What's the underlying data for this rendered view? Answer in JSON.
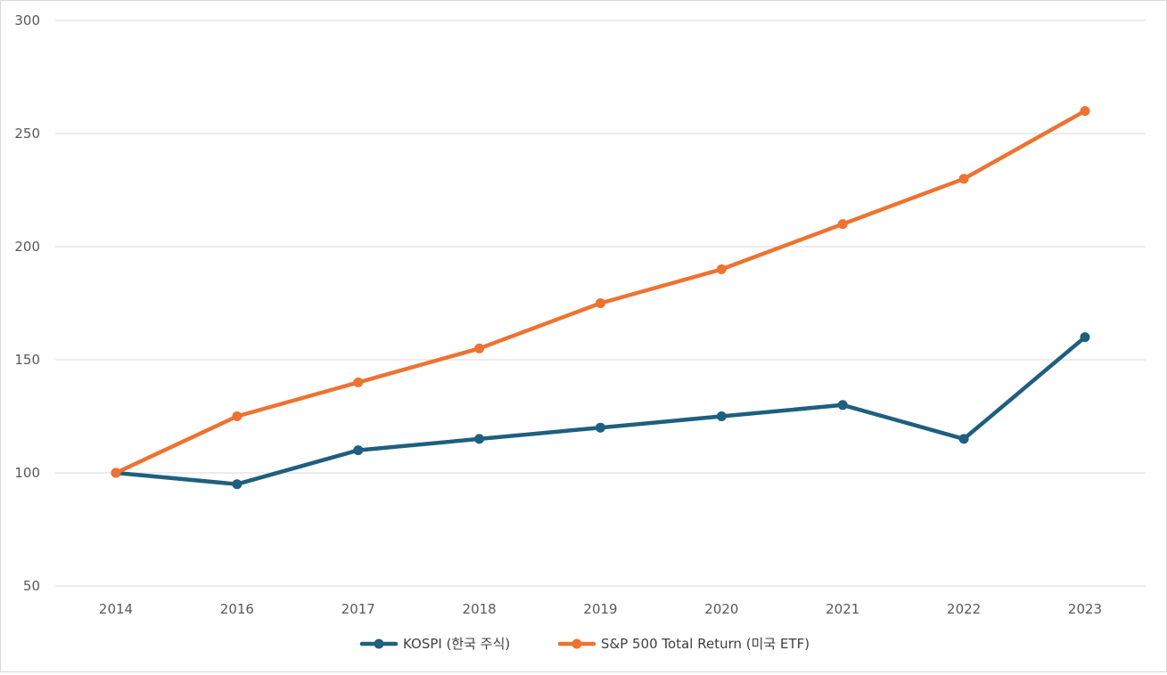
{
  "chart_data": {
    "type": "line",
    "title": "",
    "xlabel": "",
    "ylabel": "",
    "categories": [
      "2014",
      "2016",
      "2017",
      "2018",
      "2019",
      "2020",
      "2021",
      "2022",
      "2023"
    ],
    "ylim": [
      50,
      300
    ],
    "yticks": [
      "50",
      "100",
      "150",
      "200",
      "250",
      "300"
    ],
    "grid": true,
    "legend_position": "bottom",
    "series": [
      {
        "name": "KOSPI (한국 주식)",
        "color": "#1F5F7F",
        "values": [
          100,
          95,
          110,
          115,
          120,
          125,
          130,
          115,
          160
        ]
      },
      {
        "name": "S&P 500 Total Return (미국 ETF)",
        "color": "#ED7332",
        "values": [
          100,
          125,
          140,
          155,
          175,
          190,
          210,
          230,
          260
        ]
      }
    ]
  }
}
